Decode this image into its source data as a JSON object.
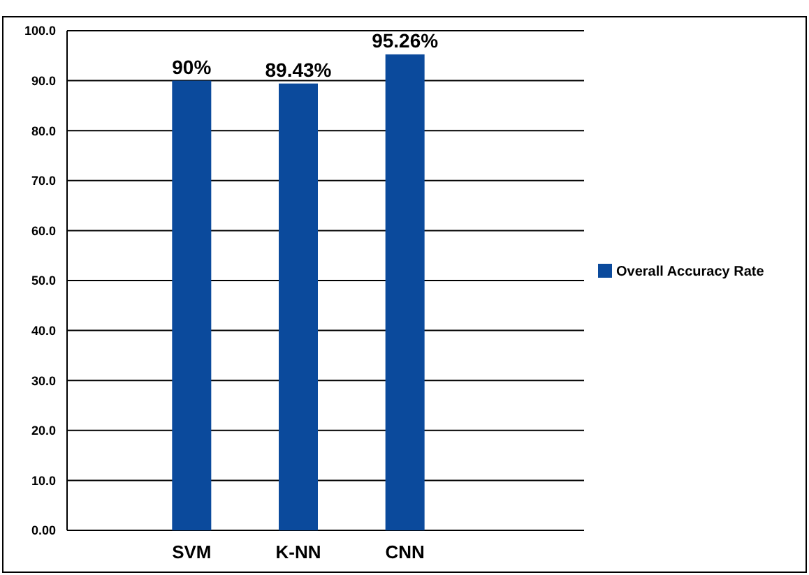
{
  "chart_data": {
    "type": "bar",
    "categories": [
      "SVM",
      "K-NN",
      "CNN"
    ],
    "series": [
      {
        "name": "Overall Accuracy Rate",
        "color": "#0b4a9c",
        "values": [
          90,
          89.43,
          95.26
        ],
        "value_labels": [
          "90%",
          "89.43%",
          "95.26%"
        ]
      }
    ],
    "ylim": [
      0,
      100
    ],
    "yticks": [
      {
        "value": 0,
        "label": "0.00"
      },
      {
        "value": 10,
        "label": "10.0"
      },
      {
        "value": 20,
        "label": "20.0"
      },
      {
        "value": 30,
        "label": "30.0"
      },
      {
        "value": 40,
        "label": "40.0"
      },
      {
        "value": 50,
        "label": "50.0"
      },
      {
        "value": 60,
        "label": "60.0"
      },
      {
        "value": 70,
        "label": "70.0"
      },
      {
        "value": 80,
        "label": "80.0"
      },
      {
        "value": 90,
        "label": "90.0"
      },
      {
        "value": 100,
        "label": "100.0"
      }
    ],
    "grid": "y",
    "legend": "right"
  }
}
